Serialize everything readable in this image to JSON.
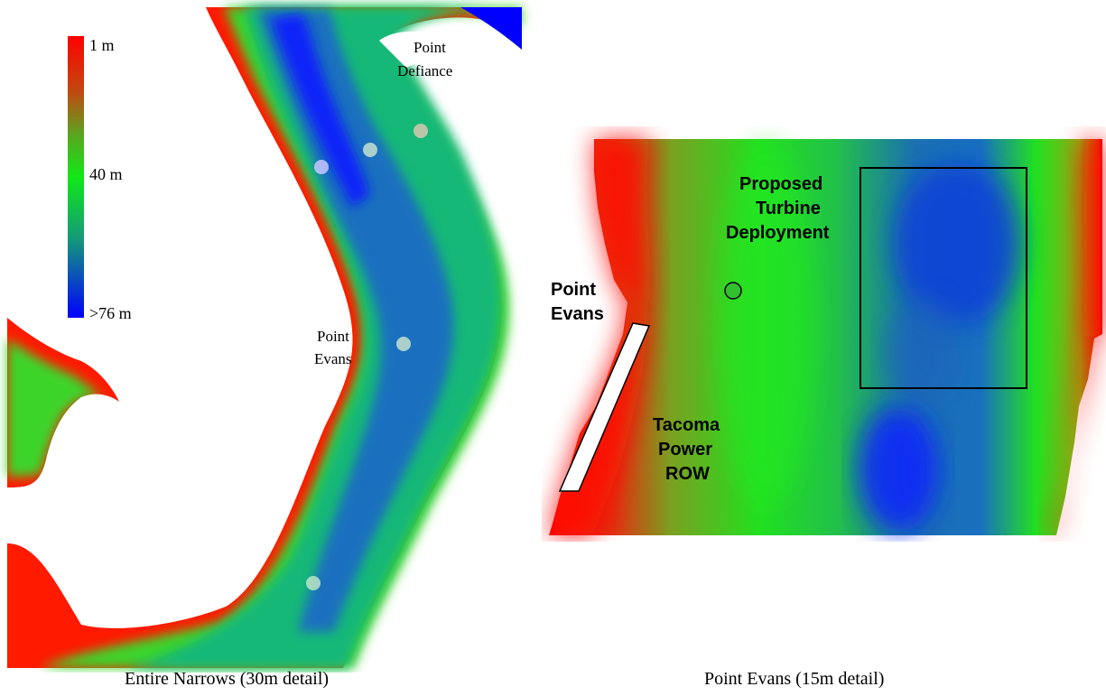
{
  "legend": {
    "top_label": "1 m",
    "mid_label": "40 m",
    "bottom_label": ">76 m",
    "colors": [
      "#ff0000",
      "#2fd92f",
      "#0000ff"
    ]
  },
  "left_map": {
    "labels": {
      "point_defiance_line1": "Point",
      "point_defiance_line2": "Defiance",
      "point_evans_line1": "Point",
      "point_evans_line2": "Evans"
    },
    "caption": "Entire Narrows (30m detail)"
  },
  "right_map": {
    "labels": {
      "proposed_line1": "Proposed",
      "proposed_line2": "Turbine",
      "proposed_line3": "Deployment",
      "point_evans_line1": "Point",
      "point_evans_line2": "Evans",
      "tacoma_line1": "Tacoma",
      "tacoma_line2": "Power",
      "tacoma_line3": "ROW"
    },
    "caption": "Point Evans (15m detail)"
  }
}
